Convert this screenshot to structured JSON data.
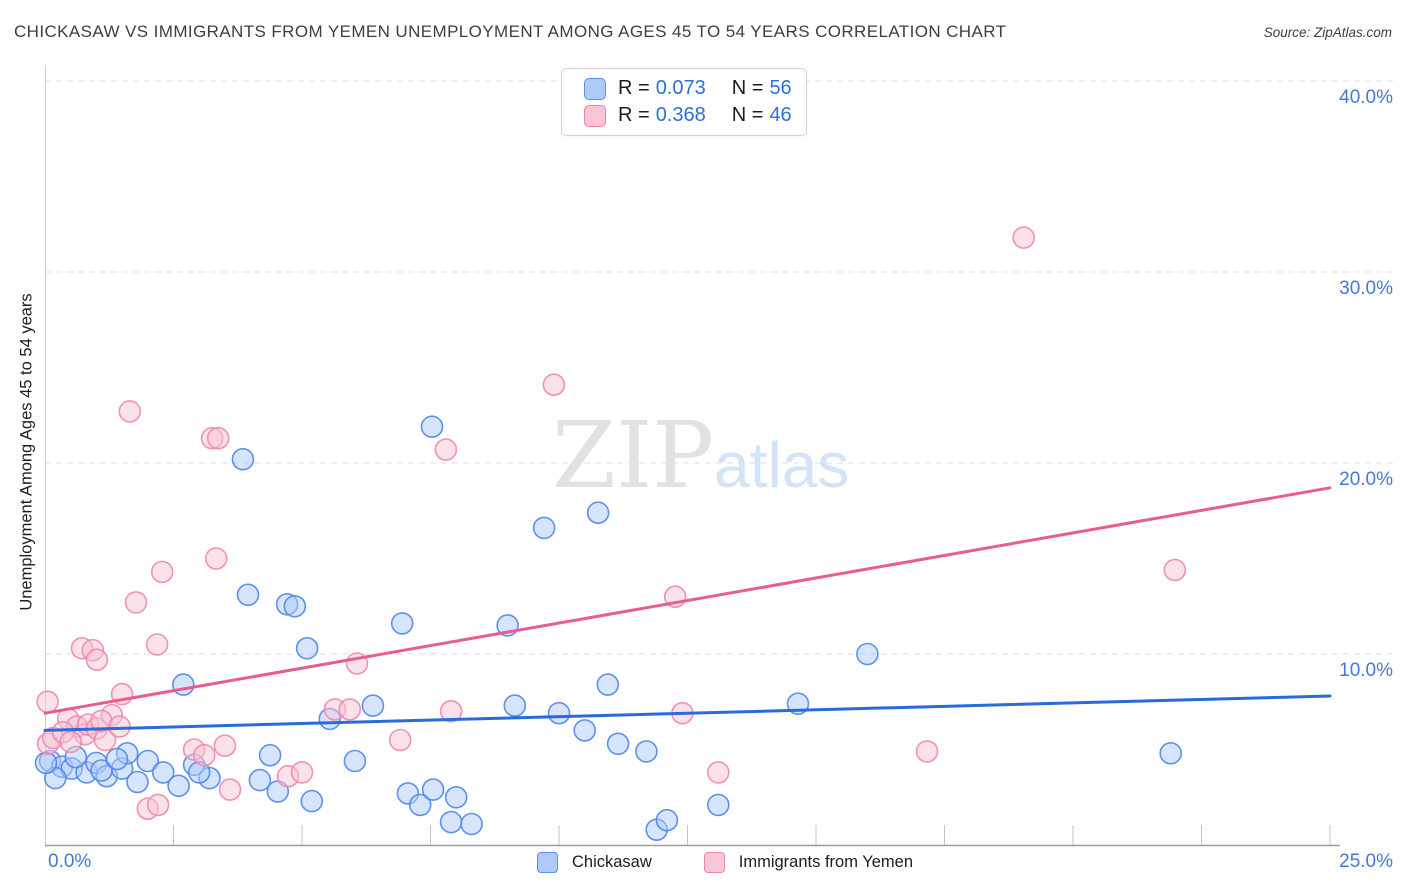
{
  "header": {
    "title": "CHICKASAW VS IMMIGRANTS FROM YEMEN UNEMPLOYMENT AMONG AGES 45 TO 54 YEARS CORRELATION CHART",
    "source": "Source: ZipAtlas.com"
  },
  "watermark": {
    "zip": "ZIP",
    "atlas": "atlas"
  },
  "legend_box": {
    "rows": [
      {
        "series": "Chickasaw",
        "r_label": "R =",
        "r_value": "0.073",
        "n_label": "N =",
        "n_value": "56"
      },
      {
        "series": "Immigrants from Yemen",
        "r_label": "R =",
        "r_value": "0.368",
        "n_label": "N =",
        "n_value": "46"
      }
    ]
  },
  "bottom_legend": {
    "items": [
      {
        "label": "Chickasaw",
        "color": "#aecbf7",
        "border": "#5b8ff0"
      },
      {
        "label": "Immigrants from Yemen",
        "color": "#f9c6d8",
        "border": "#ef87ac"
      }
    ]
  },
  "axis_labels": {
    "y_axis_title": "Unemployment Among Ages 45 to 54 years",
    "x_min_label": "0.0%",
    "x_max_label": "25.0%"
  },
  "colors": {
    "blue_fill": "#aecbf7",
    "blue_stroke": "#4f86ec",
    "blue_trend": "#2a6bdc",
    "pink_fill": "#f8c3d6",
    "pink_stroke": "#ef87ac",
    "pink_trend": "#e75d92",
    "axis_label_blue": "#4678d8",
    "gridline": "#dcdcdc",
    "axis_line": "#9e9e9e",
    "watermark_zip": "#e2e2e2",
    "watermark_atlas": "#d3e3f8"
  },
  "chart_data": {
    "type": "scatter",
    "title": "Chickasaw vs Immigrants from Yemen Unemployment Among Ages 45 to 54 years",
    "xlabel": "",
    "ylabel": "Unemployment Among Ages 45 to 54 years",
    "xlim": [
      0,
      25
    ],
    "ylim": [
      0,
      41.9
    ],
    "x_tick_step": 2.5,
    "grid": "horizontal-dashed",
    "y_gridlines": [
      10,
      20,
      30,
      40
    ],
    "y_axis_labels": [
      {
        "text": "40.0%",
        "value": 40
      },
      {
        "text": "30.0%",
        "value": 30
      },
      {
        "text": "20.0%",
        "value": 20
      },
      {
        "text": "10.0%",
        "value": 10
      }
    ],
    "series": [
      {
        "name": "Chickasaw",
        "R": 0.073,
        "N": 56,
        "trend": {
          "x": [
            0,
            25
          ],
          "y": [
            6.0,
            7.8
          ]
        },
        "points": [
          [
            0.1,
            4.4
          ],
          [
            0.33,
            4.1
          ],
          [
            0.52,
            4.0
          ],
          [
            0.81,
            3.8
          ],
          [
            1.0,
            4.3
          ],
          [
            1.2,
            3.6
          ],
          [
            1.5,
            4.0
          ],
          [
            1.8,
            3.3
          ],
          [
            2.0,
            4.4
          ],
          [
            2.3,
            3.8
          ],
          [
            2.6,
            3.1
          ],
          [
            2.9,
            4.2
          ],
          [
            3.2,
            3.5
          ],
          [
            1.6,
            4.8
          ],
          [
            0.2,
            3.5
          ],
          [
            0.6,
            4.6
          ],
          [
            1.1,
            3.9
          ],
          [
            1.4,
            4.5
          ],
          [
            3.0,
            3.8
          ],
          [
            0.02,
            4.3
          ],
          [
            2.69,
            8.4
          ],
          [
            3.85,
            20.2
          ],
          [
            3.95,
            13.1
          ],
          [
            4.71,
            12.6
          ],
          [
            4.86,
            12.5
          ],
          [
            5.1,
            10.3
          ],
          [
            4.38,
            4.7
          ],
          [
            4.18,
            3.4
          ],
          [
            4.53,
            2.8
          ],
          [
            5.19,
            2.3
          ],
          [
            5.54,
            6.6
          ],
          [
            6.03,
            4.4
          ],
          [
            6.38,
            7.3
          ],
          [
            7.06,
            2.7
          ],
          [
            7.3,
            2.1
          ],
          [
            7.55,
            2.9
          ],
          [
            8.0,
            2.5
          ],
          [
            7.9,
            1.2
          ],
          [
            8.3,
            1.1
          ],
          [
            6.95,
            11.6
          ],
          [
            9.0,
            11.5
          ],
          [
            7.53,
            21.9
          ],
          [
            9.71,
            16.6
          ],
          [
            10.76,
            17.4
          ],
          [
            9.14,
            7.3
          ],
          [
            10.0,
            6.9
          ],
          [
            10.5,
            6.0
          ],
          [
            11.15,
            5.3
          ],
          [
            11.7,
            4.9
          ],
          [
            10.95,
            8.4
          ],
          [
            11.9,
            0.8
          ],
          [
            12.1,
            1.3
          ],
          [
            13.1,
            2.1
          ],
          [
            14.65,
            7.4
          ],
          [
            16.0,
            10.0
          ],
          [
            21.9,
            4.8
          ]
        ]
      },
      {
        "name": "Immigrants from Yemen",
        "R": 0.368,
        "N": 46,
        "trend": {
          "x": [
            0,
            25
          ],
          "y": [
            6.9,
            18.7
          ]
        },
        "points": [
          [
            0.05,
            7.5
          ],
          [
            0.06,
            5.3
          ],
          [
            0.16,
            5.6
          ],
          [
            0.45,
            6.6
          ],
          [
            0.62,
            6.2
          ],
          [
            0.78,
            5.8
          ],
          [
            0.84,
            6.3
          ],
          [
            1.01,
            6.1
          ],
          [
            1.17,
            5.5
          ],
          [
            1.3,
            6.8
          ],
          [
            0.35,
            5.9
          ],
          [
            0.5,
            5.4
          ],
          [
            1.1,
            6.5
          ],
          [
            1.45,
            6.2
          ],
          [
            1.5,
            7.9
          ],
          [
            0.72,
            10.3
          ],
          [
            0.93,
            10.2
          ],
          [
            1.01,
            9.7
          ],
          [
            2.18,
            10.5
          ],
          [
            1.77,
            12.7
          ],
          [
            2.28,
            14.3
          ],
          [
            3.33,
            15.0
          ],
          [
            1.65,
            22.7
          ],
          [
            3.25,
            21.3
          ],
          [
            3.37,
            21.3
          ],
          [
            2.0,
            1.9
          ],
          [
            2.2,
            2.1
          ],
          [
            3.6,
            2.9
          ],
          [
            2.9,
            5.0
          ],
          [
            3.1,
            4.7
          ],
          [
            3.5,
            5.2
          ],
          [
            4.73,
            3.6
          ],
          [
            5.0,
            3.8
          ],
          [
            5.64,
            7.1
          ],
          [
            5.93,
            7.1
          ],
          [
            6.07,
            9.5
          ],
          [
            6.91,
            5.5
          ],
          [
            7.9,
            7.0
          ],
          [
            7.8,
            20.7
          ],
          [
            9.9,
            24.1
          ],
          [
            12.4,
            6.9
          ],
          [
            13.1,
            3.8
          ],
          [
            12.26,
            13.0
          ],
          [
            17.16,
            4.9
          ],
          [
            19.04,
            31.8
          ],
          [
            21.98,
            14.4
          ]
        ]
      }
    ]
  }
}
